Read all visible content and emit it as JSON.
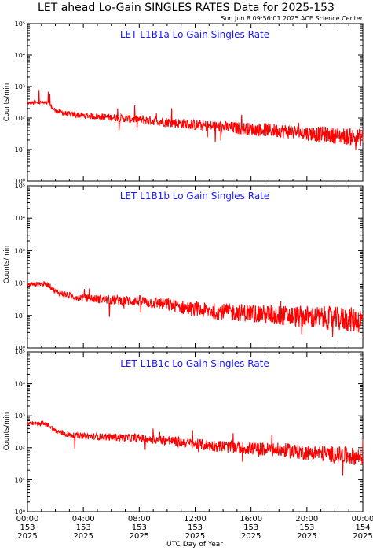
{
  "header": {
    "title": "LET ahead Lo-Gain SINGLES RATES Data for 2025-153",
    "timestamp": "Sun Jun  8 09:56:01 2025 ACE Science Center"
  },
  "colors": {
    "series": "#ff0000",
    "panel_title": "#1a1aff",
    "axes": "#000000"
  },
  "chart_data": [
    {
      "type": "line",
      "title": "LET L1B1a Lo Gain Singles Rate",
      "ylabel": "Counts/min",
      "yscale": "log",
      "ylim": [
        1,
        100000
      ],
      "xlim": [
        0,
        24
      ],
      "y_tick_labels": [
        "10⁰",
        "10¹",
        "10²",
        "10³",
        "10⁴",
        "10⁵"
      ],
      "series": [
        {
          "x": [
            0,
            1,
            1.5,
            2,
            3,
            4,
            6,
            8,
            10,
            12,
            14,
            16,
            18,
            20,
            22,
            24
          ],
          "values": [
            300,
            310,
            290,
            170,
            130,
            120,
            105,
            90,
            75,
            60,
            52,
            45,
            40,
            33,
            28,
            24
          ]
        }
      ]
    },
    {
      "type": "line",
      "title": "LET L1B1b Lo Gain Singles Rate",
      "ylabel": "Counts/min",
      "yscale": "log",
      "ylim": [
        1,
        100000
      ],
      "xlim": [
        0,
        24
      ],
      "y_tick_labels": [
        "10⁰",
        "10¹",
        "10²",
        "10³",
        "10⁴",
        "10⁵"
      ],
      "series": [
        {
          "x": [
            0,
            1,
            1.5,
            2,
            3,
            4,
            6,
            8,
            10,
            12,
            14,
            16,
            18,
            20,
            22,
            24
          ],
          "values": [
            90,
            95,
            90,
            55,
            40,
            35,
            30,
            28,
            22,
            15,
            13,
            12,
            10,
            9,
            8,
            7
          ]
        }
      ]
    },
    {
      "type": "line",
      "title": "LET L1B1c Lo Gain Singles Rate",
      "ylabel": "Counts/min",
      "yscale": "log",
      "ylim": [
        1,
        100000
      ],
      "xlim": [
        0,
        24
      ],
      "y_tick_labels": [
        "10⁰",
        "10¹",
        "10²",
        "10³",
        "10⁴",
        "10⁵"
      ],
      "xlabel": "UTC Day of Year",
      "x_ticks": [
        {
          "time": "00:00",
          "day": "153",
          "year": "2025"
        },
        {
          "time": "04:00",
          "day": "153",
          "year": "2025"
        },
        {
          "time": "08:00",
          "day": "153",
          "year": "2025"
        },
        {
          "time": "12:00",
          "day": "153",
          "year": "2025"
        },
        {
          "time": "16:00",
          "day": "153",
          "year": "2025"
        },
        {
          "time": "20:00",
          "day": "153",
          "year": "2025"
        },
        {
          "time": "00:00",
          "day": "154",
          "year": "2025"
        }
      ],
      "series": [
        {
          "x": [
            0,
            1,
            1.5,
            2,
            3,
            4,
            6,
            8,
            10,
            12,
            14,
            16,
            18,
            20,
            22,
            24
          ],
          "values": [
            560,
            580,
            520,
            330,
            250,
            230,
            215,
            200,
            170,
            130,
            110,
            95,
            85,
            72,
            62,
            50
          ]
        }
      ]
    }
  ]
}
